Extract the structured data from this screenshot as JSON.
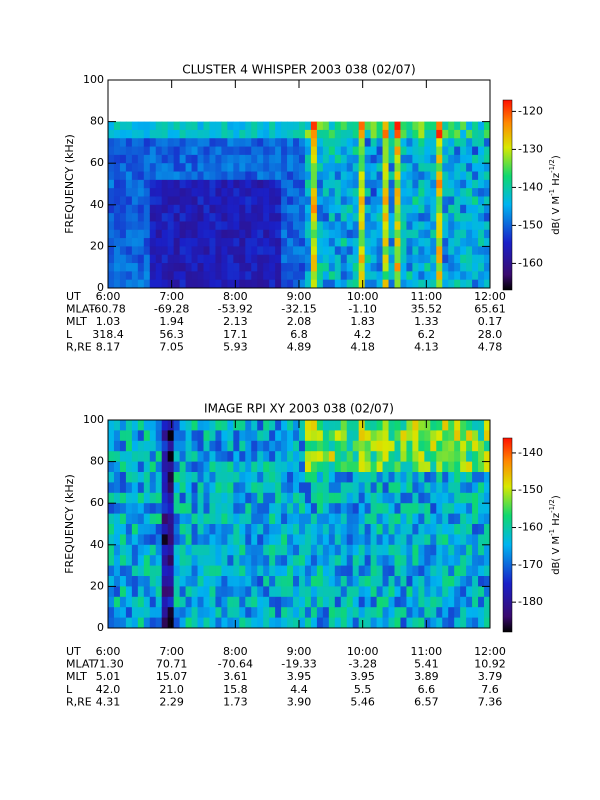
{
  "chart_data": [
    {
      "type": "spectrogram",
      "title": "CLUSTER 4 WHISPER 2003 038 (02/07)",
      "y_label": "FREQUENCY (kHz)",
      "xlim": [
        6,
        12
      ],
      "xticks": [
        {
          "value": 6,
          "label": "6:00"
        },
        {
          "value": 7,
          "label": "7:00"
        },
        {
          "value": 8,
          "label": "8:00"
        },
        {
          "value": 9,
          "label": "9:00"
        },
        {
          "value": 10,
          "label": "10:00"
        },
        {
          "value": 11,
          "label": "11:00"
        },
        {
          "value": 12,
          "label": "12:00"
        }
      ],
      "ylim": [
        0,
        100
      ],
      "yticks": [
        0,
        20,
        40,
        60,
        80,
        100
      ],
      "data_top": 80,
      "clim": [
        -167,
        -117
      ],
      "cticks": [
        -160,
        -150,
        -140,
        -130,
        -120
      ],
      "cbar_label": [
        "dB( V M",
        "-1",
        " Hz",
        "-1/2",
        ")"
      ],
      "ephemeris": {
        "ut_label": "UT",
        "rows": [
          {
            "label": "MLAT",
            "values": [
              "-60.78",
              "-69.28",
              "-53.92",
              "-32.15",
              "-1.10",
              "35.52",
              "65.61"
            ]
          },
          {
            "label": "MLT",
            "values": [
              "1.03",
              "1.94",
              "2.13",
              "2.08",
              "1.83",
              "1.33",
              "0.17"
            ]
          },
          {
            "label": "L",
            "values": [
              "318.4",
              "56.3",
              "17.1",
              "6.8",
              "4.2",
              "6.2",
              "28.0"
            ]
          },
          {
            "label": "R,RE",
            "values": [
              "8.17",
              "7.05",
              "5.93",
              "4.89",
              "4.18",
              "4.13",
              "4.78"
            ]
          }
        ]
      }
    },
    {
      "type": "spectrogram",
      "title": "IMAGE RPI XY 2003 038 (02/07)",
      "y_label": "FREQUENCY (kHz)",
      "xlim": [
        6,
        12
      ],
      "xticks": [
        {
          "value": 6,
          "label": "6:00"
        },
        {
          "value": 7,
          "label": "7:00"
        },
        {
          "value": 8,
          "label": "8:00"
        },
        {
          "value": 9,
          "label": "9:00"
        },
        {
          "value": 10,
          "label": "10:00"
        },
        {
          "value": 11,
          "label": "11:00"
        },
        {
          "value": 12,
          "label": "12:00"
        }
      ],
      "ylim": [
        0,
        100
      ],
      "yticks": [
        0,
        20,
        40,
        60,
        80,
        100
      ],
      "data_top": 100,
      "clim": [
        -188,
        -136
      ],
      "cticks": [
        -180,
        -170,
        -160,
        -150,
        -140
      ],
      "cbar_label": [
        "dB( V M",
        "-1",
        " Hz",
        "-1/2",
        ")"
      ],
      "ephemeris": {
        "ut_label": "UT",
        "rows": [
          {
            "label": "MLAT",
            "values": [
              "71.30",
              "70.71",
              "-70.64",
              "-19.33",
              "-3.28",
              "5.41",
              "10.92"
            ]
          },
          {
            "label": "MLT",
            "values": [
              "5.01",
              "15.07",
              "3.61",
              "3.95",
              "3.95",
              "3.89",
              "3.79"
            ]
          },
          {
            "label": "L",
            "values": [
              "42.0",
              "21.0",
              "15.8",
              "4.4",
              "5.5",
              "6.6",
              "7.6"
            ]
          },
          {
            "label": "R,RE",
            "values": [
              "4.31",
              "2.29",
              "1.73",
              "3.90",
              "5.46",
              "6.57",
              "7.36"
            ]
          }
        ]
      }
    }
  ]
}
